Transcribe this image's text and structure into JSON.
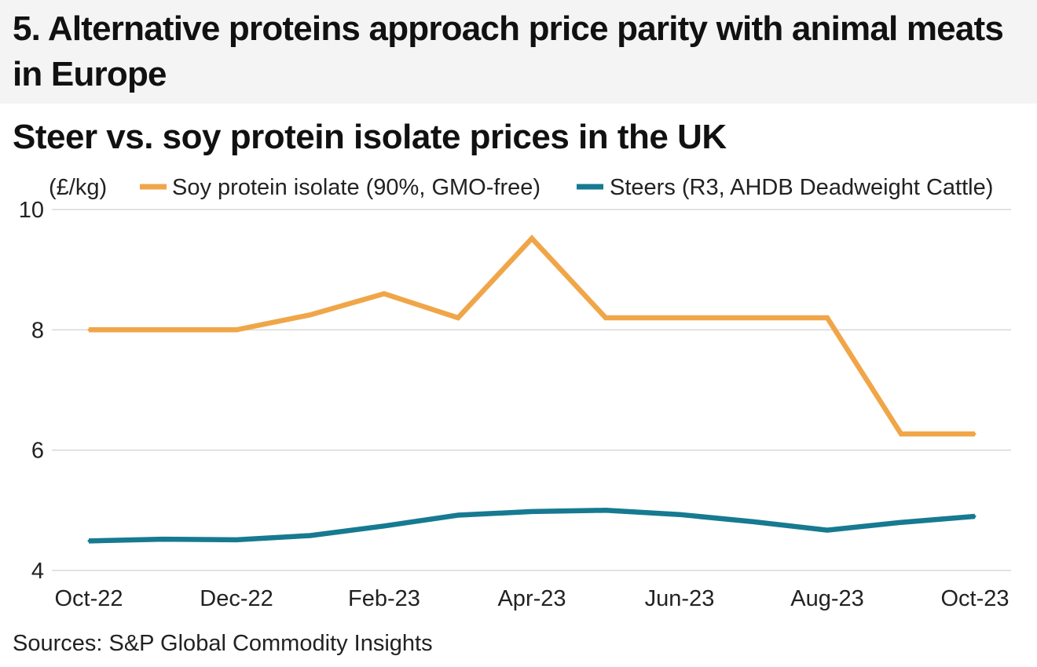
{
  "header": {
    "title": "5. Alternative proteins approach price parity with animal meats in Europe"
  },
  "chart_data": {
    "type": "line",
    "title": "Steer vs. soy protein isolate prices in the UK",
    "unit_label": "(£/kg)",
    "xlabel": "",
    "ylabel": "(£/kg)",
    "x": [
      "Oct-22",
      "Nov-22",
      "Dec-22",
      "Jan-23",
      "Feb-23",
      "Mar-23",
      "Apr-23",
      "May-23",
      "Jun-23",
      "Jul-23",
      "Aug-23",
      "Sep-23",
      "Oct-23"
    ],
    "x_tick_labels": [
      "Oct-22",
      "Dec-22",
      "Feb-23",
      "Apr-23",
      "Jun-23",
      "Aug-23",
      "Oct-23"
    ],
    "ylim": [
      4,
      10
    ],
    "y_ticks": [
      4,
      6,
      8,
      10
    ],
    "grid": true,
    "legend_position": "top",
    "series": [
      {
        "name": "Soy protein isolate (90%, GMO-free)",
        "color": "#f0a648",
        "values": [
          8.0,
          8.0,
          8.0,
          8.25,
          8.6,
          8.2,
          9.52,
          8.2,
          8.2,
          8.2,
          8.2,
          6.27,
          6.27
        ]
      },
      {
        "name": "Steers (R3, AHDB Deadweight Cattle)",
        "color": "#167a91",
        "values": [
          4.49,
          4.52,
          4.51,
          4.58,
          4.74,
          4.92,
          4.98,
          5.0,
          4.93,
          4.81,
          4.67,
          4.8,
          4.9
        ]
      }
    ]
  },
  "source": "Sources: S&P Global Commodity Insights",
  "colors": {
    "header_band": "#f4f4f4",
    "gridline": "#d9d9d9",
    "text": "#111111"
  }
}
